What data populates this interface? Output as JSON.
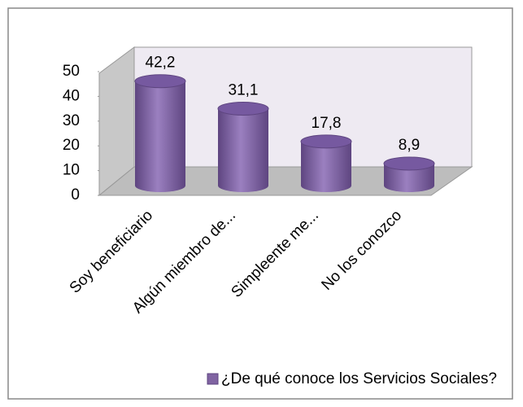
{
  "chart_data": {
    "type": "bar3d",
    "categories": [
      "Soy beneficiario",
      "Algún miembro de...",
      "Simpleente me...",
      "No los conozco"
    ],
    "series": [
      {
        "name": "¿De qué conoce los Servicios Sociales?",
        "color": "#8064a2",
        "values": [
          42.2,
          31.1,
          17.8,
          8.9
        ],
        "value_labels": [
          "42,2",
          "31,1",
          "17,8",
          "8,9"
        ]
      }
    ],
    "ylim": [
      0,
      50
    ],
    "yticks": [
      0,
      10,
      20,
      30,
      40,
      50
    ],
    "legend": "bottom"
  }
}
